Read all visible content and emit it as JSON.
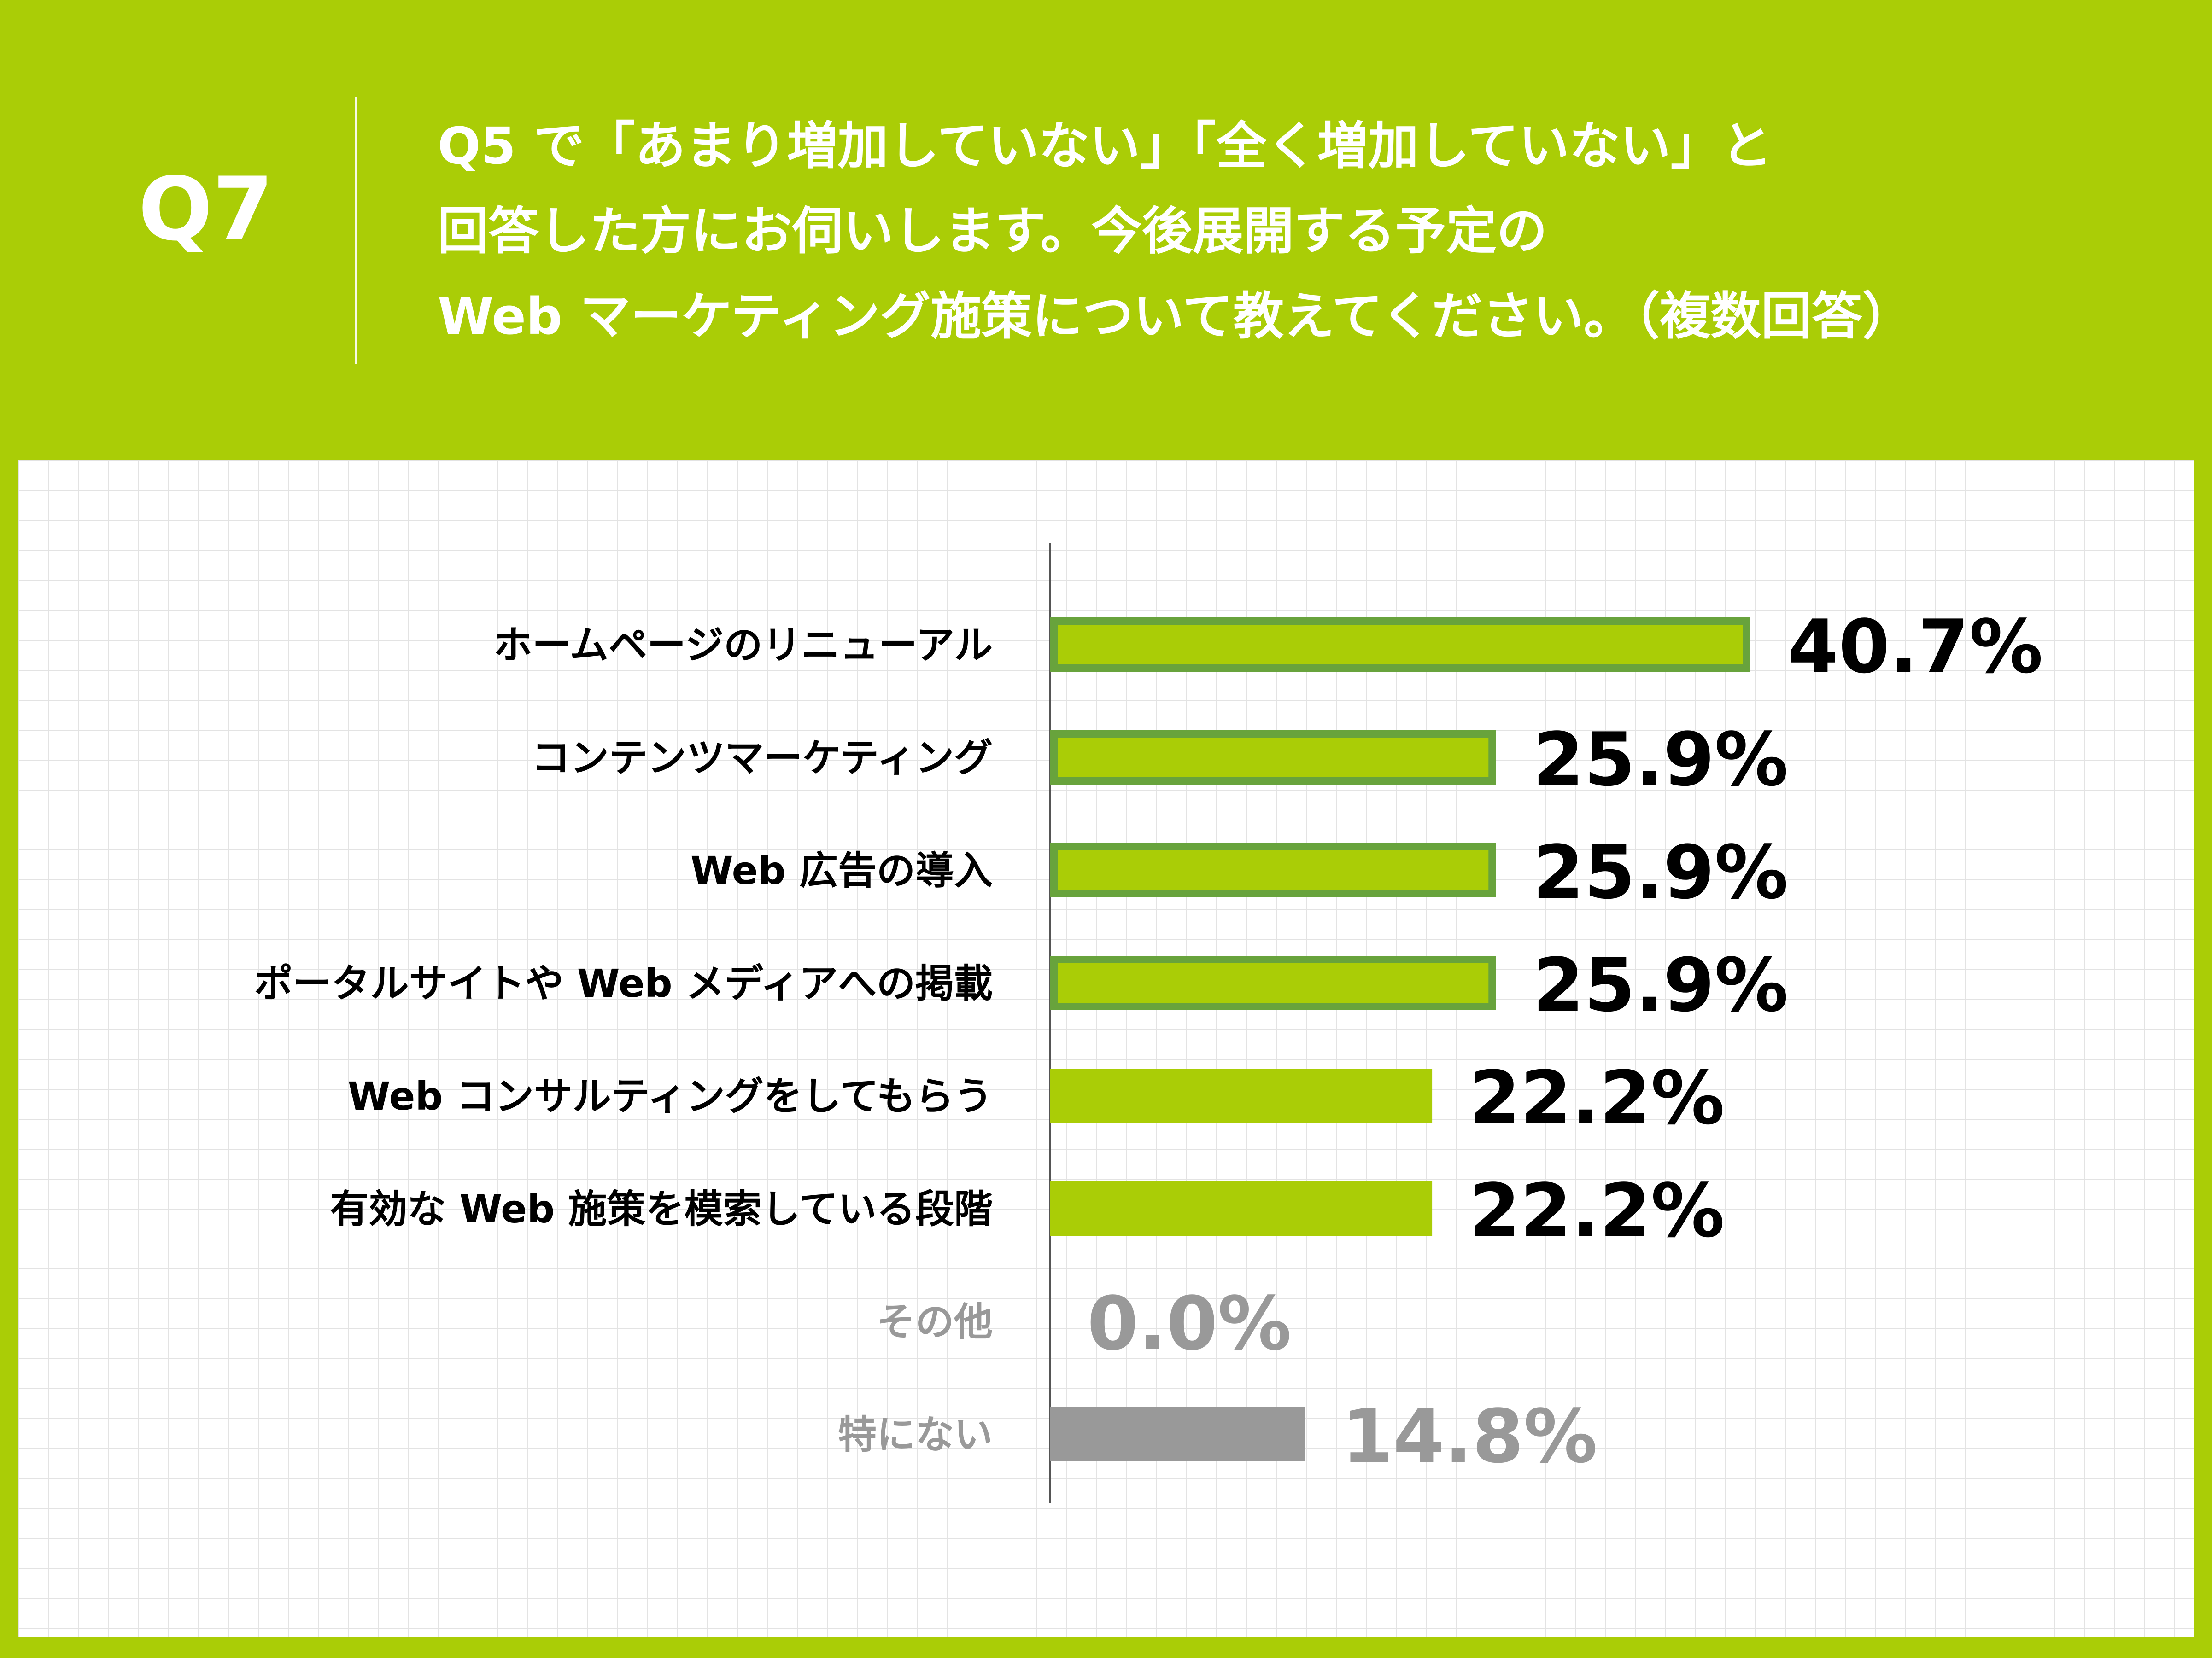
{
  "header": {
    "q_label": "Q7",
    "question_lines": [
      "Q5 で「あまり増加していない」「全く増加していない」と",
      "回答した方にお伺いします。今後展開する予定の",
      "Web マーケティング施策について教えてください。（複数回答）"
    ]
  },
  "colors": {
    "background": "#aacd06",
    "bar_fill": "#aacd06",
    "bar_outline": "#68a33c",
    "bar_gray": "#999999",
    "label_dark": "#000000",
    "label_gray": "#999999"
  },
  "chart_data": {
    "type": "bar",
    "orientation": "horizontal",
    "value_suffix": "%",
    "xlim": [
      0,
      40.7
    ],
    "grid": true,
    "categories": [
      "ホームページのリニューアル",
      "コンテンツマーケティング",
      "Web 広告の導入",
      "ポータルサイトや Web メディアへの掲載",
      "Web コンサルティングをしてもらう",
      "有効な Web 施策を模索している段階",
      "その他",
      "特にない"
    ],
    "values": [
      40.7,
      25.9,
      25.9,
      25.9,
      22.2,
      22.2,
      0.0,
      14.8
    ],
    "data_labels": [
      "40.7%",
      "25.9%",
      "25.9%",
      "25.9%",
      "22.2%",
      "22.2%",
      "0.0%",
      "14.8%"
    ],
    "styles": [
      "outlined",
      "outlined",
      "outlined",
      "outlined",
      "plain",
      "plain",
      "gray",
      "gray"
    ]
  }
}
